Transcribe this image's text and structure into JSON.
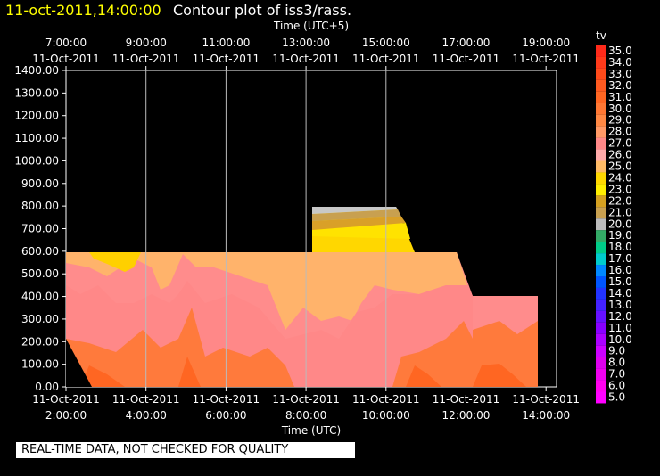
{
  "header": {
    "datetime": "11-oct-2011,14:00:00",
    "title": "Contour plot of iss3/rass."
  },
  "footer_note": "REAL-TIME DATA, NOT CHECKED FOR QUALITY",
  "chart_data": {
    "type": "heatmap",
    "top_axis_title": "Time (UTC+5)",
    "xlabel": "Time (UTC)",
    "ylabel": "",
    "top_ticks": [
      {
        "time": "7:00:00",
        "date": "11-Oct-2011"
      },
      {
        "time": "9:00:00",
        "date": "11-Oct-2011"
      },
      {
        "time": "11:00:00",
        "date": "11-Oct-2011"
      },
      {
        "time": "13:00:00",
        "date": "11-Oct-2011"
      },
      {
        "time": "15:00:00",
        "date": "11-Oct-2011"
      },
      {
        "time": "17:00:00",
        "date": "11-Oct-2011"
      },
      {
        "time": "19:00:00",
        "date": "11-Oct-2011"
      }
    ],
    "bottom_ticks": [
      {
        "time": "2:00:00",
        "date": "11-Oct-2011"
      },
      {
        "time": "4:00:00",
        "date": "11-Oct-2011"
      },
      {
        "time": "6:00:00",
        "date": "11-Oct-2011"
      },
      {
        "time": "8:00:00",
        "date": "11-Oct-2011"
      },
      {
        "time": "10:00:00",
        "date": "11-Oct-2011"
      },
      {
        "time": "12:00:00",
        "date": "11-Oct-2011"
      },
      {
        "time": "14:00:00",
        "date": "11-Oct-2011"
      }
    ],
    "xlim_hours_utc": [
      2,
      14
    ],
    "ylim": [
      0,
      1400
    ],
    "y_ticks": [
      "0.00",
      "100.00",
      "200.00",
      "300.00",
      "400.00",
      "500.00",
      "600.00",
      "700.00",
      "800.00",
      "900.00",
      "1000.00",
      "1100.00",
      "1200.00",
      "1300.00",
      "1400.00"
    ],
    "colorbar": {
      "label": "tv",
      "levels": [
        "35.0",
        "34.0",
        "33.0",
        "32.0",
        "31.0",
        "30.0",
        "29.0",
        "28.0",
        "27.0",
        "26.0",
        "25.0",
        "24.0",
        "23.0",
        "22.0",
        "21.0",
        "20.0",
        "19.0",
        "18.0",
        "17.0",
        "16.0",
        "15.0",
        "14.0",
        "13.0",
        "12.0",
        "11.0",
        "10.0",
        "9.0",
        "8.0",
        "7.0",
        "6.0",
        "5.0"
      ],
      "colors": [
        "#ff2a1a",
        "#ff3a1a",
        "#ff4a1a",
        "#ff5a20",
        "#ff6622",
        "#ff7733",
        "#ff8844",
        "#ff9966",
        "#ff8888",
        "#ffaaaa",
        "#ffbb66",
        "#ffd700",
        "#ffee00",
        "#d4a020",
        "#c8a050",
        "#bbbbbb",
        "#33aa66",
        "#00cc88",
        "#00cccc",
        "#0088ff",
        "#0055ff",
        "#2233ff",
        "#4422ff",
        "#6611ff",
        "#8800ff",
        "#aa00ff",
        "#cc00ff",
        "#dd00ee",
        "#ee00ee",
        "#ff00ee",
        "#ff00ff"
      ]
    },
    "regions": [
      {
        "name": "upper-rass-block",
        "hours_utc": [
          8.15,
          10.35
        ],
        "heights": [
          600,
          800
        ],
        "bands": [
          "yellow",
          "gold",
          "tan",
          "gray"
        ]
      },
      {
        "name": "main-block",
        "hours_utc": [
          2.0,
          12.2
        ],
        "heights": [
          0,
          600
        ],
        "dominant": [
          "25.0",
          "26.0",
          "27.0",
          "28.0"
        ]
      },
      {
        "name": "late-block",
        "hours_utc": [
          12.2,
          13.8
        ],
        "heights": [
          0,
          400
        ],
        "dominant": [
          "27.0",
          "28.0",
          "29.0"
        ]
      }
    ],
    "grid": true
  }
}
